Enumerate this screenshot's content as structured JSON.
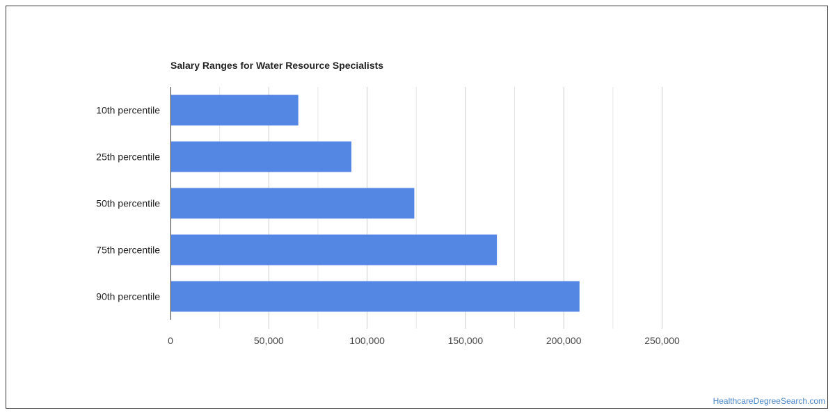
{
  "chart_data": {
    "type": "bar",
    "orientation": "horizontal",
    "title": "Salary Ranges for Water Resource Specialists",
    "categories": [
      "10th percentile",
      "25th percentile",
      "50th percentile",
      "75th percentile",
      "90th percentile"
    ],
    "values": [
      65000,
      92000,
      124000,
      166000,
      208000
    ],
    "xlim": [
      0,
      300000
    ],
    "x_ticks": [
      0,
      50000,
      100000,
      150000,
      200000,
      250000
    ],
    "x_tick_labels": [
      "0",
      "50,000",
      "100,000",
      "150,000",
      "200,000",
      "250,000"
    ],
    "grid": true,
    "legend": "none",
    "xlabel": "",
    "ylabel": "",
    "bar_color": "#5486e3"
  },
  "watermark": {
    "text": "HealthcareDegreeSearch.com",
    "color": "#4a86c8"
  }
}
